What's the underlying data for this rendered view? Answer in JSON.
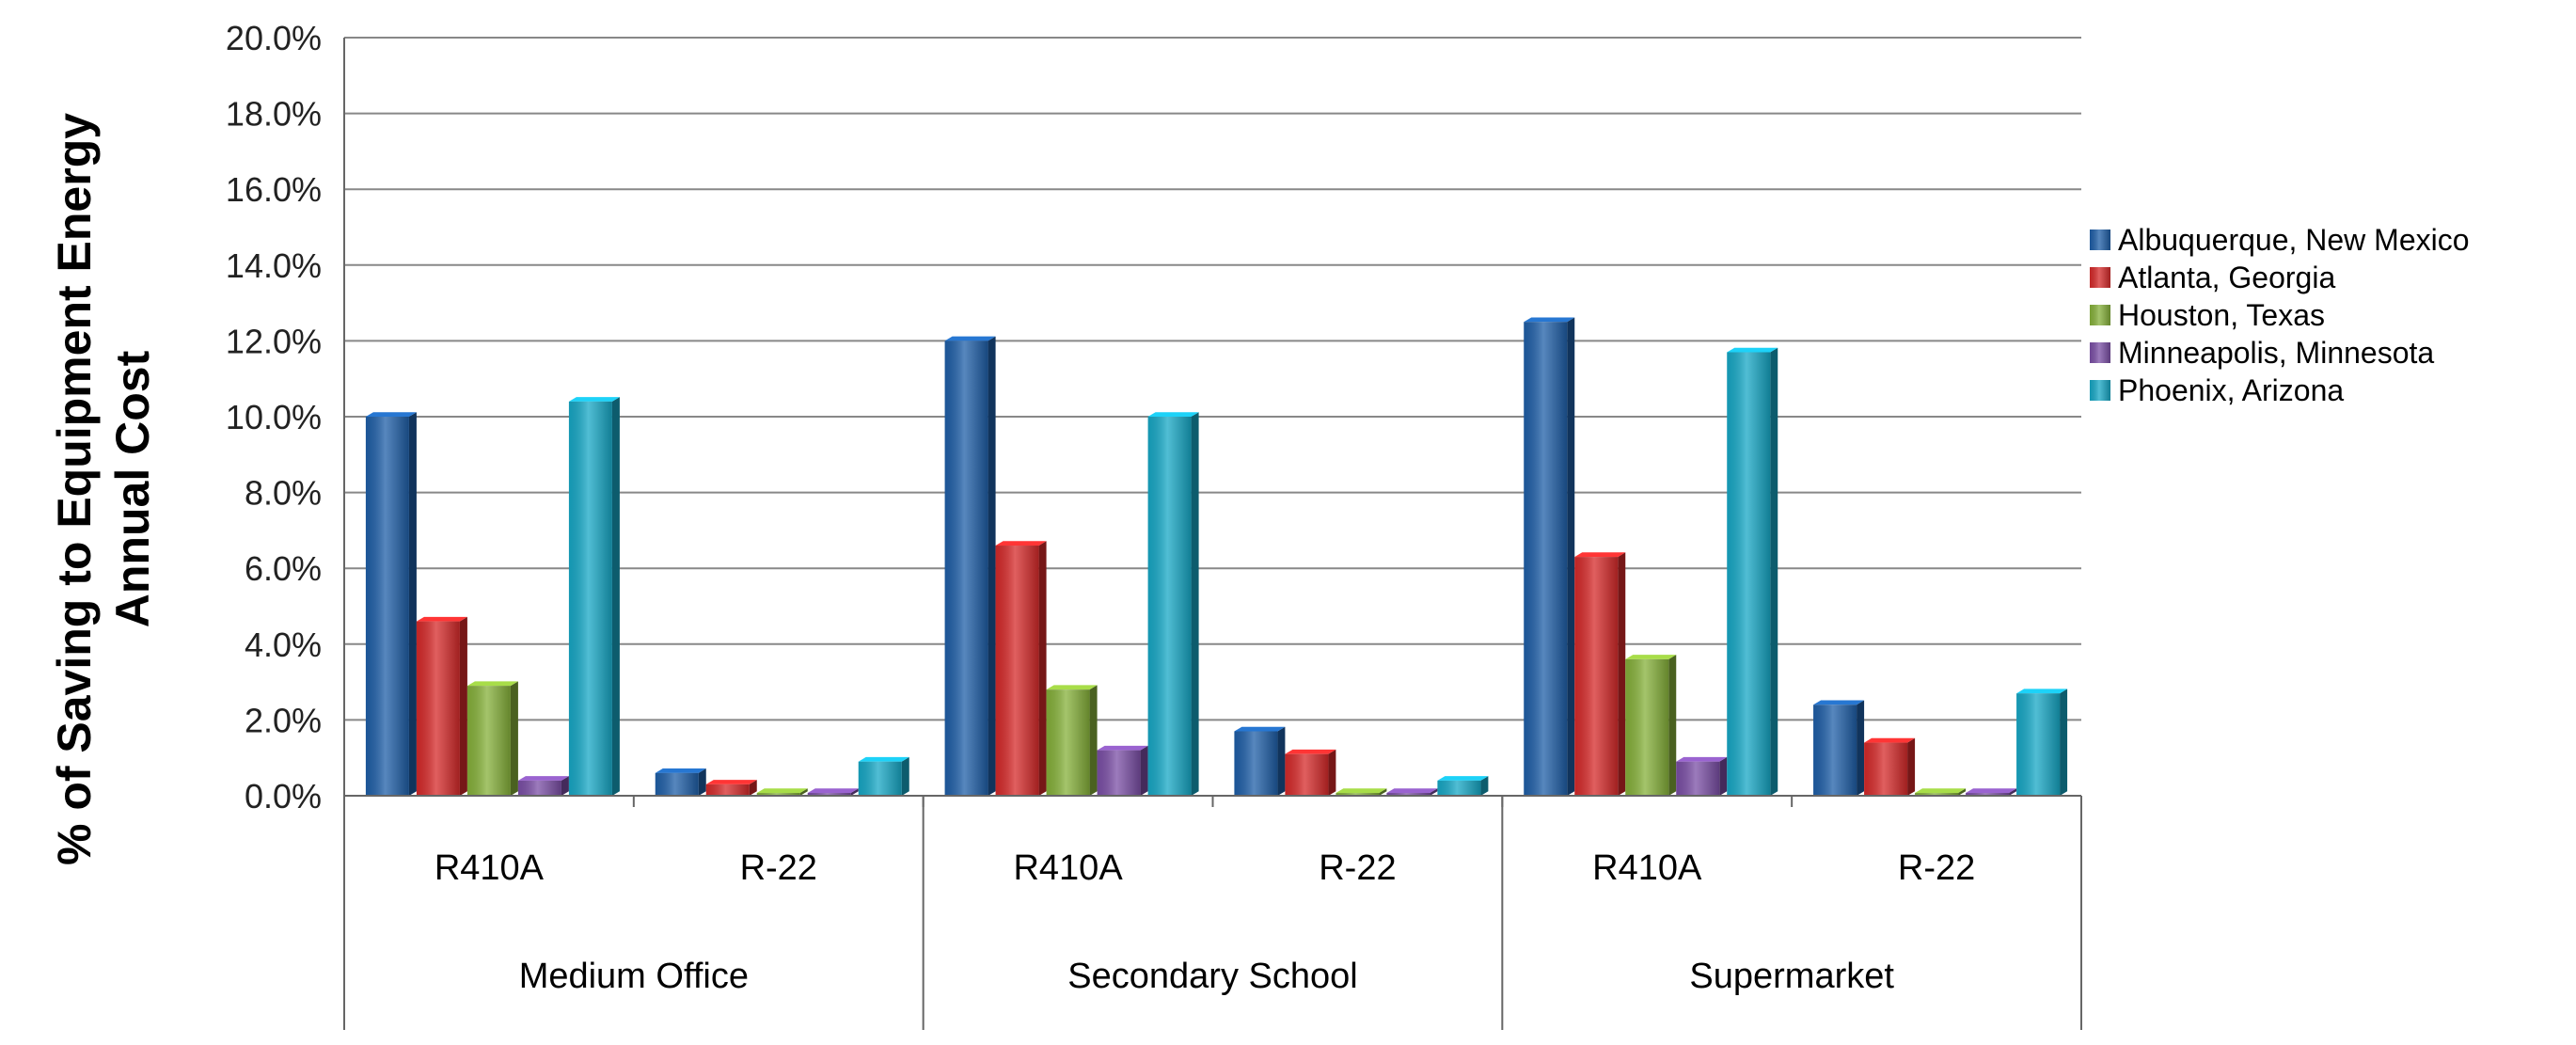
{
  "chart_data": {
    "type": "bar",
    "title": "",
    "ylabel_lines": [
      "% of Saving to Equipment Energy",
      "Annual Cost"
    ],
    "xlabel": "",
    "ylim": [
      0,
      20
    ],
    "ytick_step": 2,
    "ytick_labels": [
      "0.0%",
      "2.0%",
      "4.0%",
      "6.0%",
      "8.0%",
      "10.0%",
      "12.0%",
      "14.0%",
      "16.0%",
      "18.0%",
      "20.0%"
    ],
    "groups": [
      {
        "label": "Medium Office",
        "categories": [
          "R410A",
          "R-22"
        ]
      },
      {
        "label": "Secondary School",
        "categories": [
          "R410A",
          "R-22"
        ]
      },
      {
        "label": "Supermarket",
        "categories": [
          "R410A",
          "R-22"
        ]
      }
    ],
    "series": [
      {
        "name": "Albuquerque, New Mexico",
        "color": "#1F5FA8",
        "values": [
          10.0,
          0.6,
          12.0,
          1.7,
          12.5,
          2.4
        ]
      },
      {
        "name": "Atlanta, Georgia",
        "color": "#D62A2A",
        "values": [
          4.6,
          0.3,
          6.6,
          1.1,
          6.3,
          1.4
        ]
      },
      {
        "name": "Houston, Texas",
        "color": "#86B13A",
        "values": [
          2.9,
          0.0,
          2.8,
          0.0,
          3.6,
          0.0
        ]
      },
      {
        "name": "Minneapolis, Minnesota",
        "color": "#7B4FA6",
        "values": [
          0.4,
          0.0,
          1.2,
          0.0,
          0.9,
          0.0
        ]
      },
      {
        "name": "Phoenix, Arizona",
        "color": "#17A8C6",
        "values": [
          10.4,
          0.9,
          10.0,
          0.4,
          11.7,
          2.7
        ]
      }
    ],
    "legend_position": "right"
  }
}
